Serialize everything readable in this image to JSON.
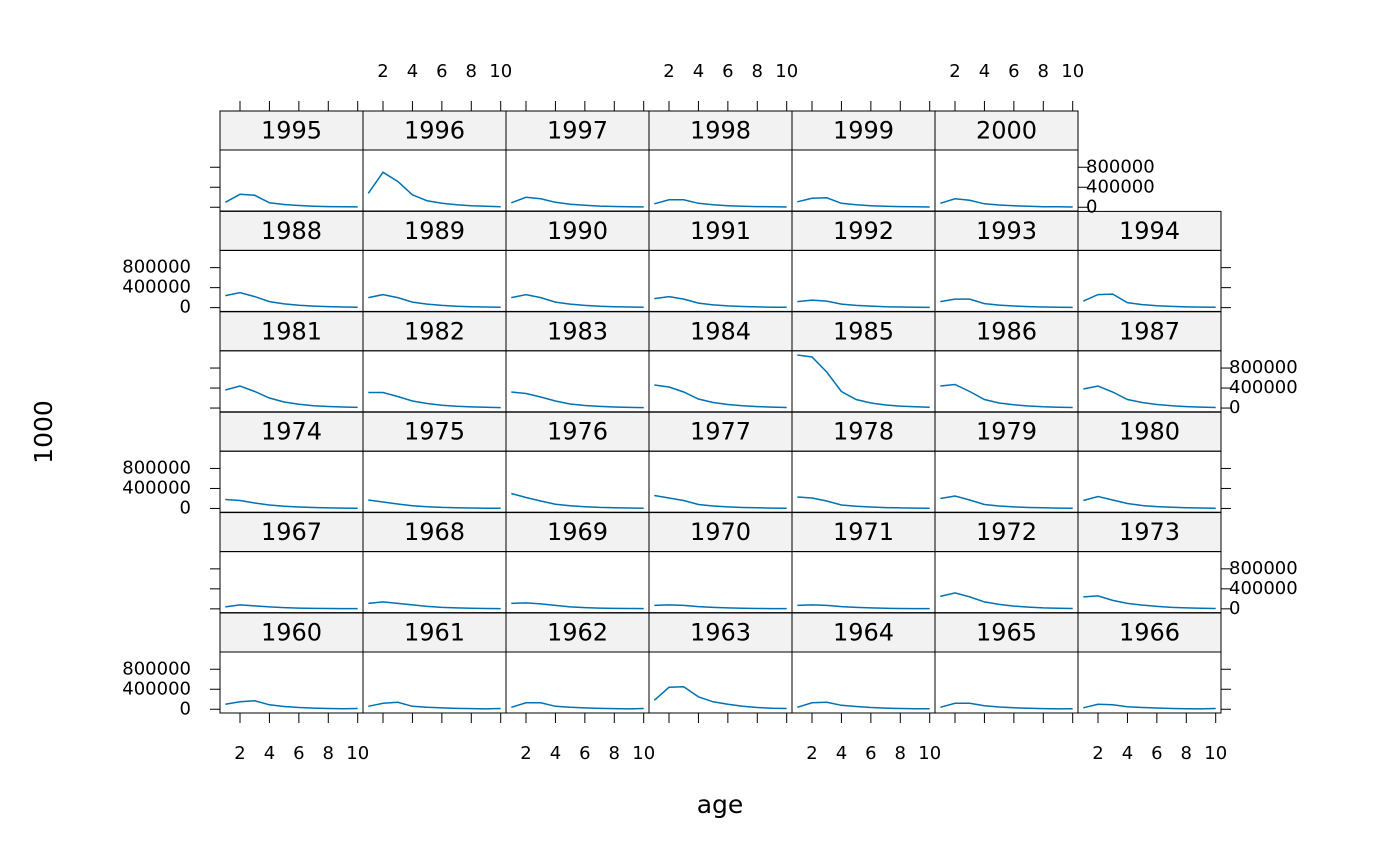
{
  "chart_data": {
    "type": "line",
    "xlabel": "age",
    "ylabel": "1000",
    "color": "#0072b2",
    "x": [
      1,
      2,
      3,
      4,
      5,
      6,
      7,
      8,
      9,
      10
    ],
    "xlim": [
      0.64,
      10.36
    ],
    "xticks": [
      2,
      4,
      6,
      8,
      10
    ],
    "ylim": [
      -75000,
      1145000
    ],
    "yticks": [
      0,
      400000,
      800000
    ],
    "panels": [
      {
        "name": "1960",
        "values": [
          100000,
          150000,
          170000,
          90000,
          55000,
          35000,
          22000,
          15000,
          10000,
          15000
        ]
      },
      {
        "name": "1961",
        "values": [
          60000,
          120000,
          140000,
          60000,
          40000,
          28000,
          18000,
          12000,
          8000,
          15000
        ]
      },
      {
        "name": "1962",
        "values": [
          40000,
          130000,
          130000,
          60000,
          40000,
          28000,
          18000,
          12000,
          8000,
          15000
        ]
      },
      {
        "name": "1963",
        "values": [
          180000,
          440000,
          450000,
          250000,
          150000,
          100000,
          60000,
          35000,
          20000,
          15000
        ]
      },
      {
        "name": "1964",
        "values": [
          40000,
          130000,
          140000,
          80000,
          55000,
          35000,
          22000,
          15000,
          10000,
          10000
        ]
      },
      {
        "name": "1965",
        "values": [
          40000,
          120000,
          120000,
          70000,
          45000,
          30000,
          20000,
          12000,
          8000,
          10000
        ]
      },
      {
        "name": "1966",
        "values": [
          30000,
          100000,
          90000,
          50000,
          35000,
          25000,
          16000,
          10000,
          7000,
          15000
        ]
      },
      {
        "name": "1967",
        "values": [
          40000,
          80000,
          60000,
          40000,
          25000,
          15000,
          10000,
          7000,
          5000,
          5000
        ]
      },
      {
        "name": "1968",
        "values": [
          110000,
          140000,
          110000,
          80000,
          50000,
          30000,
          20000,
          12000,
          8000,
          6000
        ]
      },
      {
        "name": "1969",
        "values": [
          110000,
          120000,
          100000,
          70000,
          40000,
          25000,
          15000,
          10000,
          7000,
          5000
        ]
      },
      {
        "name": "1970",
        "values": [
          70000,
          80000,
          70000,
          45000,
          30000,
          20000,
          12000,
          8000,
          5000,
          4000
        ]
      },
      {
        "name": "1971",
        "values": [
          70000,
          80000,
          70000,
          45000,
          30000,
          20000,
          12000,
          8000,
          5000,
          4000
        ]
      },
      {
        "name": "1972",
        "values": [
          250000,
          320000,
          240000,
          140000,
          90000,
          55000,
          35000,
          20000,
          12000,
          8000
        ]
      },
      {
        "name": "1973",
        "values": [
          240000,
          260000,
          170000,
          110000,
          75000,
          50000,
          30000,
          20000,
          12000,
          8000
        ]
      },
      {
        "name": "1974",
        "values": [
          180000,
          160000,
          110000,
          70000,
          45000,
          30000,
          20000,
          12000,
          8000,
          5000
        ]
      },
      {
        "name": "1975",
        "values": [
          170000,
          130000,
          90000,
          55000,
          35000,
          22000,
          15000,
          10000,
          6000,
          4000
        ]
      },
      {
        "name": "1976",
        "values": [
          300000,
          220000,
          150000,
          85000,
          55000,
          35000,
          22000,
          15000,
          10000,
          6000
        ]
      },
      {
        "name": "1977",
        "values": [
          260000,
          210000,
          160000,
          80000,
          50000,
          32000,
          20000,
          13000,
          8000,
          5000
        ]
      },
      {
        "name": "1978",
        "values": [
          230000,
          210000,
          150000,
          70000,
          45000,
          30000,
          18000,
          12000,
          8000,
          5000
        ]
      },
      {
        "name": "1979",
        "values": [
          200000,
          250000,
          170000,
          80000,
          50000,
          32000,
          20000,
          13000,
          8000,
          5000
        ]
      },
      {
        "name": "1980",
        "values": [
          160000,
          240000,
          170000,
          100000,
          60000,
          38000,
          24000,
          15000,
          10000,
          6000
        ]
      },
      {
        "name": "1981",
        "values": [
          360000,
          440000,
          330000,
          200000,
          120000,
          75000,
          45000,
          30000,
          20000,
          12000
        ]
      },
      {
        "name": "1982",
        "values": [
          310000,
          310000,
          230000,
          140000,
          90000,
          55000,
          35000,
          22000,
          14000,
          9000
        ]
      },
      {
        "name": "1983",
        "values": [
          320000,
          290000,
          220000,
          140000,
          80000,
          50000,
          32000,
          20000,
          13000,
          8000
        ]
      },
      {
        "name": "1984",
        "values": [
          460000,
          420000,
          320000,
          180000,
          110000,
          70000,
          45000,
          28000,
          18000,
          11000
        ]
      },
      {
        "name": "1985",
        "values": [
          1060000,
          1020000,
          720000,
          330000,
          170000,
          100000,
          60000,
          38000,
          24000,
          15000
        ]
      },
      {
        "name": "1986",
        "values": [
          440000,
          470000,
          330000,
          170000,
          100000,
          65000,
          40000,
          25000,
          16000,
          10000
        ]
      },
      {
        "name": "1987",
        "values": [
          380000,
          440000,
          320000,
          170000,
          110000,
          70000,
          45000,
          28000,
          18000,
          11000
        ]
      },
      {
        "name": "1988",
        "values": [
          240000,
          300000,
          220000,
          120000,
          75000,
          48000,
          30000,
          20000,
          12000,
          8000
        ]
      },
      {
        "name": "1989",
        "values": [
          200000,
          260000,
          200000,
          110000,
          70000,
          45000,
          28000,
          18000,
          12000,
          8000
        ]
      },
      {
        "name": "1990",
        "values": [
          200000,
          260000,
          200000,
          110000,
          70000,
          45000,
          28000,
          18000,
          12000,
          8000
        ]
      },
      {
        "name": "1991",
        "values": [
          180000,
          220000,
          170000,
          90000,
          55000,
          35000,
          22000,
          14000,
          9000,
          6000
        ]
      },
      {
        "name": "1992",
        "values": [
          120000,
          150000,
          130000,
          70000,
          45000,
          30000,
          18000,
          12000,
          8000,
          5000
        ]
      },
      {
        "name": "1993",
        "values": [
          120000,
          170000,
          170000,
          80000,
          50000,
          32000,
          20000,
          13000,
          8000,
          5000
        ]
      },
      {
        "name": "1994",
        "values": [
          130000,
          260000,
          270000,
          100000,
          60000,
          38000,
          24000,
          15000,
          10000,
          6000
        ]
      },
      {
        "name": "1995",
        "values": [
          100000,
          260000,
          240000,
          90000,
          55000,
          35000,
          22000,
          14000,
          9000,
          6000
        ]
      },
      {
        "name": "1996",
        "values": [
          280000,
          700000,
          520000,
          250000,
          130000,
          80000,
          50000,
          30000,
          20000,
          12000
        ]
      },
      {
        "name": "1997",
        "values": [
          90000,
          200000,
          170000,
          100000,
          60000,
          38000,
          24000,
          15000,
          10000,
          6000
        ]
      },
      {
        "name": "1998",
        "values": [
          70000,
          150000,
          150000,
          80000,
          50000,
          32000,
          20000,
          13000,
          8000,
          5000
        ]
      },
      {
        "name": "1999",
        "values": [
          110000,
          180000,
          190000,
          80000,
          50000,
          32000,
          20000,
          13000,
          8000,
          5000
        ]
      },
      {
        "name": "2000",
        "values": [
          80000,
          170000,
          140000,
          70000,
          45000,
          28000,
          18000,
          12000,
          8000,
          5000
        ]
      }
    ]
  }
}
